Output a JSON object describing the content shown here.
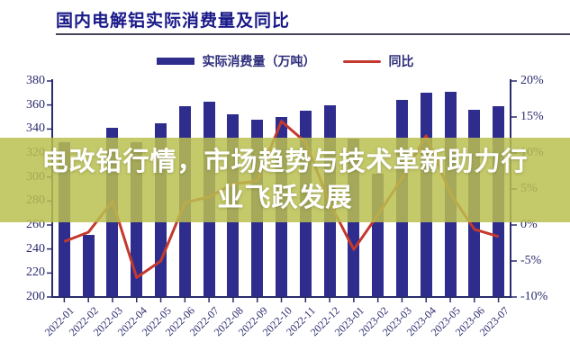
{
  "title": "国内电解铝实际消费量及同比",
  "legend": {
    "items": [
      {
        "label": "实际消费量（万吨）",
        "swatch": "bar",
        "color": "#2e2d8e"
      },
      {
        "label": "同比",
        "swatch": "line",
        "color": "#c4392d"
      }
    ]
  },
  "overlay": {
    "line1": "电改铅行情，市场趋势与技术革新助力行",
    "line2": "业飞跃发展"
  },
  "colors": {
    "bar": "#2e2d8e",
    "line": "#c4392d",
    "axis": "#2b2b6e",
    "title_text": "#191989",
    "band_overlay": "#bac050",
    "band_text": "#ffffff"
  },
  "chart_data": {
    "type": "bar",
    "title": "国内电解铝实际消费量及同比",
    "categories": [
      "2022-01",
      "2022-02",
      "2022-03",
      "2022-04",
      "2022-05",
      "2022-06",
      "2022-07",
      "2022-08",
      "2022-09",
      "2022-10",
      "2022-11",
      "2022-12",
      "2023-01",
      "2023-02",
      "2023-03",
      "2023-04",
      "2023-05",
      "2023-06",
      "2023-07"
    ],
    "series": [
      {
        "name": "实际消费量（万吨）",
        "type": "bar",
        "axis": "left",
        "values": [
          329,
          252,
          341,
          329,
          345,
          359,
          363,
          352,
          348,
          350,
          355,
          360,
          332,
          303,
          364,
          370,
          371,
          356,
          359
        ]
      },
      {
        "name": "同比",
        "type": "line",
        "axis": "right",
        "values_pct": [
          -2.3,
          -1.0,
          3.3,
          -7.3,
          -5.0,
          3.1,
          3.9,
          5.7,
          6.1,
          14.4,
          11.5,
          3.1,
          -3.4,
          1.4,
          6.5,
          12.4,
          4.4,
          -0.6,
          -1.6
        ]
      }
    ],
    "left_axis": {
      "min": 200,
      "max": 380,
      "step": 20,
      "tick_labels": [
        "380",
        "360",
        "340",
        "320",
        "300",
        "280",
        "260",
        "240",
        "220",
        "200"
      ]
    },
    "right_axis": {
      "min": -10,
      "max": 20,
      "step": 5,
      "tick_labels": [
        "20%",
        "15%",
        "10%",
        "5%",
        "0%",
        "-5%",
        "-10%"
      ]
    },
    "grid": false,
    "legend_position": "top",
    "xlabel": "",
    "ylabel": ""
  }
}
